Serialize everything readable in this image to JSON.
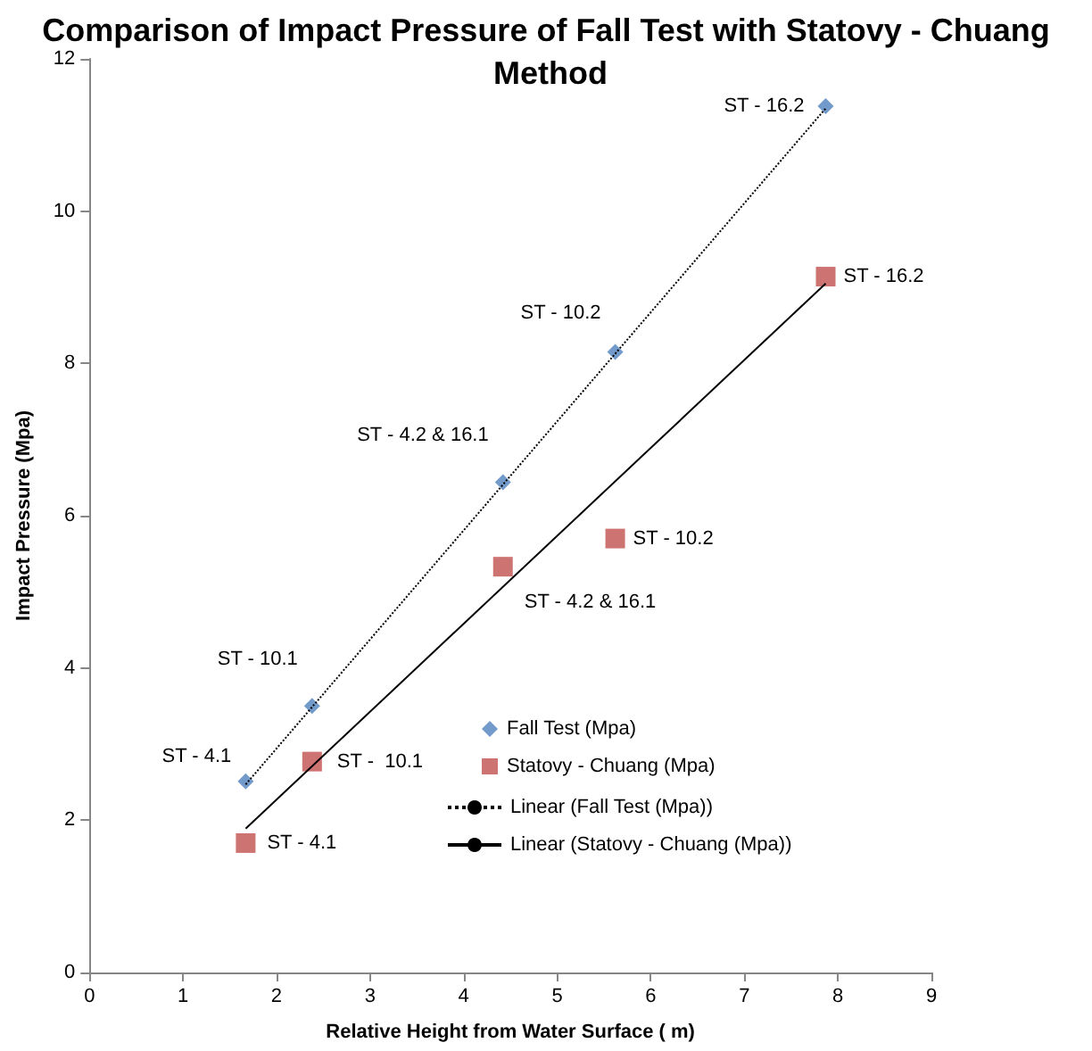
{
  "chart_data": {
    "type": "scatter",
    "title": "Comparison of Impact Pressure of Fall Test with Statovy - Chuang Method",
    "xlabel": "Relative Height from Water Surface ( m)",
    "ylabel": "Impact Pressure (Mpa)",
    "xlim": [
      0,
      9
    ],
    "xticks": [
      0,
      1,
      2,
      3,
      4,
      5,
      6,
      7,
      8,
      9
    ],
    "ylim": [
      0,
      12
    ],
    "yticks": [
      0,
      2,
      4,
      6,
      8,
      10,
      12
    ],
    "grid": false,
    "legend": "right",
    "series": [
      {
        "name": "Fall Test (Mpa)",
        "marker": "diamond",
        "color": "#4f81bd",
        "x": [
          1.67,
          2.38,
          4.42,
          5.62,
          7.87
        ],
        "values": [
          2.51,
          3.5,
          6.44,
          8.15,
          11.38
        ]
      },
      {
        "name": "Statovy - Chuang (Mpa)",
        "marker": "square",
        "color": "#c0504d",
        "x": [
          1.67,
          2.38,
          4.42,
          5.62,
          7.87
        ],
        "values": [
          1.7,
          2.77,
          5.33,
          5.7,
          9.14
        ]
      },
      {
        "name": "Linear (Fall Test (Mpa))",
        "type": "line",
        "line_style": "dotted",
        "color": "#000000",
        "x": [
          1.67,
          7.87
        ],
        "values": [
          2.47,
          11.35
        ]
      },
      {
        "name": "Linear (Statovy - Chuang (Mpa))",
        "type": "line",
        "line_style": "solid",
        "color": "#000000",
        "x": [
          1.67,
          7.87
        ],
        "values": [
          1.89,
          9.05
        ]
      }
    ],
    "annotations": [
      {
        "text": "ST - 4.1",
        "x": 1.67,
        "y": 2.51
      },
      {
        "text": "ST - 10.1",
        "x": 2.38,
        "y": 3.5
      },
      {
        "text": "ST - 4.2 & 16.1",
        "x": 4.42,
        "y": 6.44
      },
      {
        "text": "ST - 10.2",
        "x": 5.62,
        "y": 8.15
      },
      {
        "text": "ST - 16.2",
        "x": 7.87,
        "y": 11.38
      },
      {
        "text": "ST - 4.1",
        "x": 1.67,
        "y": 1.7
      },
      {
        "text": "ST -  10.1",
        "x": 2.38,
        "y": 2.77
      },
      {
        "text": "ST - 4.2 & 16.1",
        "x": 4.42,
        "y": 5.33
      },
      {
        "text": "ST - 10.2",
        "x": 5.62,
        "y": 5.7
      },
      {
        "text": "ST - 16.2",
        "x": 7.87,
        "y": 9.14
      }
    ]
  }
}
